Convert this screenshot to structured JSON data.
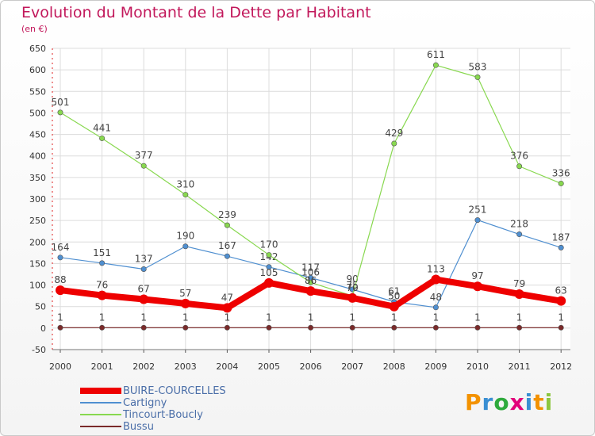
{
  "title": "Evolution du Montant de la Dette par Habitant",
  "subtitle": "(en €)",
  "logo_text": "Proxiti",
  "chart_data": {
    "type": "line",
    "title": "Evolution du Montant de la Dette par Habitant",
    "ylabel": "(en €)",
    "x": [
      2000,
      2001,
      2002,
      2003,
      2004,
      2005,
      2006,
      2007,
      2008,
      2009,
      2010,
      2011,
      2012
    ],
    "ylim": [
      -50,
      650
    ],
    "yticks": [
      -50,
      0,
      50,
      100,
      150,
      200,
      250,
      300,
      350,
      400,
      450,
      500,
      550,
      600,
      650
    ],
    "grid": true,
    "legend_position": "bottom-left",
    "series": [
      {
        "name": "BUIRE-COURCELLES",
        "color": "#ee0000",
        "values": [
          88,
          76,
          67,
          57,
          47,
          105,
          86,
          70,
          50,
          113,
          97,
          79,
          63
        ]
      },
      {
        "name": "Cartigny",
        "color": "#4f8fd0",
        "values": [
          164,
          151,
          137,
          190,
          167,
          142,
          117,
          90,
          61,
          48,
          251,
          218,
          187
        ]
      },
      {
        "name": "Tincourt-Boucly",
        "color": "#88d84f",
        "values": [
          501,
          441,
          377,
          310,
          239,
          170,
          106,
          75,
          429,
          611,
          583,
          376,
          336
        ]
      },
      {
        "name": "Bussu",
        "color": "#7a2a2a",
        "values": [
          1,
          1,
          1,
          1,
          1,
          1,
          1,
          1,
          1,
          1,
          1,
          1,
          1
        ]
      }
    ]
  }
}
